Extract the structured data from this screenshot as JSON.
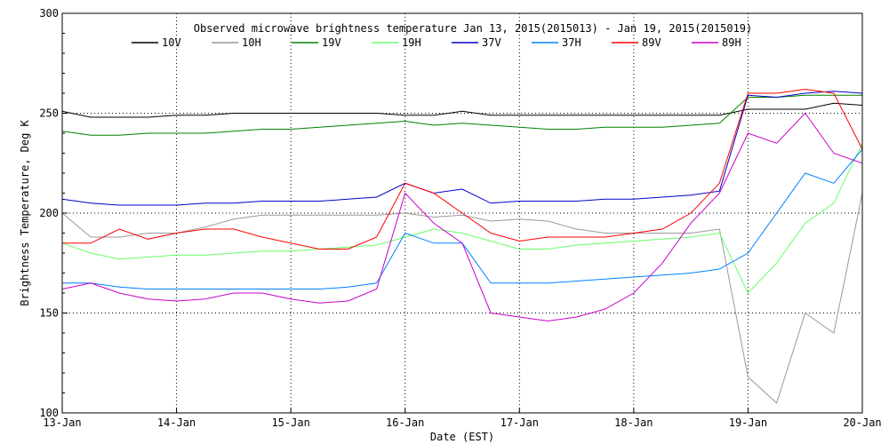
{
  "chart_data": {
    "type": "line",
    "title": "Observed microwave brightness temperature Jan 13, 2015(2015013) - Jan 19, 2015(2015019)",
    "xlabel": "Date (EST)",
    "ylabel": "Brightness Temperature, Deg K",
    "ylim": [
      100,
      300
    ],
    "xlim": [
      0,
      7
    ],
    "x_tick_labels": [
      "13-Jan",
      "14-Jan",
      "15-Jan",
      "16-Jan",
      "17-Jan",
      "18-Jan",
      "19-Jan",
      "20-Jan"
    ],
    "y_tick_labels": [
      "100",
      "150",
      "200",
      "250",
      "300"
    ],
    "y_ticks": [
      100,
      150,
      200,
      250,
      300
    ],
    "grid": true,
    "legend": "top",
    "x": [
      0,
      0.25,
      0.5,
      0.75,
      1,
      1.25,
      1.5,
      1.75,
      2,
      2.25,
      2.5,
      2.75,
      3,
      3.25,
      3.5,
      3.75,
      4,
      4.25,
      4.5,
      4.75,
      5,
      5.25,
      5.5,
      5.75,
      6,
      6.25,
      6.5,
      6.75,
      7
    ],
    "series": [
      {
        "name": "10V",
        "color": "#000000",
        "values": [
          251,
          248,
          248,
          248,
          249,
          249,
          250,
          250,
          250,
          250,
          250,
          250,
          249,
          249,
          251,
          249,
          249,
          249,
          249,
          249,
          249,
          249,
          249,
          249,
          252,
          252,
          252,
          255,
          254
        ]
      },
      {
        "name": "10H",
        "color": "#999999",
        "values": [
          200,
          188,
          188,
          190,
          190,
          193,
          197,
          199,
          199,
          199,
          199,
          199,
          200,
          198,
          199,
          196,
          197,
          196,
          192,
          190,
          190,
          190,
          190,
          192,
          118,
          105,
          150,
          140,
          210
        ]
      },
      {
        "name": "19V",
        "color": "#008000",
        "values": [
          241,
          239,
          239,
          240,
          240,
          240,
          241,
          242,
          242,
          243,
          244,
          245,
          246,
          244,
          245,
          244,
          243,
          242,
          242,
          243,
          243,
          243,
          244,
          245,
          258,
          258,
          259,
          259,
          259
        ]
      },
      {
        "name": "19H",
        "color": "#66ff66",
        "values": [
          185,
          180,
          177,
          178,
          179,
          179,
          180,
          181,
          181,
          182,
          183,
          184,
          188,
          192,
          190,
          186,
          182,
          182,
          184,
          185,
          186,
          187,
          188,
          190,
          160,
          175,
          195,
          205,
          235
        ]
      },
      {
        "name": "37V",
        "color": "#0000c8",
        "values": [
          207,
          205,
          204,
          204,
          204,
          205,
          205,
          206,
          206,
          206,
          207,
          208,
          215,
          210,
          212,
          205,
          206,
          206,
          206,
          207,
          207,
          208,
          209,
          211,
          259,
          258,
          260,
          261,
          260
        ]
      },
      {
        "name": "37H",
        "color": "#0080ff",
        "values": [
          165,
          165,
          163,
          162,
          162,
          162,
          162,
          162,
          162,
          162,
          163,
          165,
          190,
          185,
          185,
          165,
          165,
          165,
          166,
          167,
          168,
          169,
          170,
          172,
          180,
          200,
          220,
          215,
          232
        ]
      },
      {
        "name": "89V",
        "color": "#ff0000",
        "values": [
          185,
          185,
          192,
          187,
          190,
          192,
          192,
          188,
          185,
          182,
          182,
          188,
          215,
          210,
          200,
          190,
          186,
          188,
          188,
          188,
          190,
          192,
          200,
          215,
          260,
          260,
          262,
          260,
          232
        ]
      },
      {
        "name": "89H",
        "color": "#cc00cc",
        "values": [
          162,
          165,
          160,
          157,
          156,
          157,
          160,
          160,
          157,
          155,
          156,
          162,
          210,
          195,
          185,
          150,
          148,
          146,
          148,
          152,
          160,
          175,
          195,
          210,
          240,
          235,
          250,
          230,
          225
        ]
      }
    ]
  }
}
